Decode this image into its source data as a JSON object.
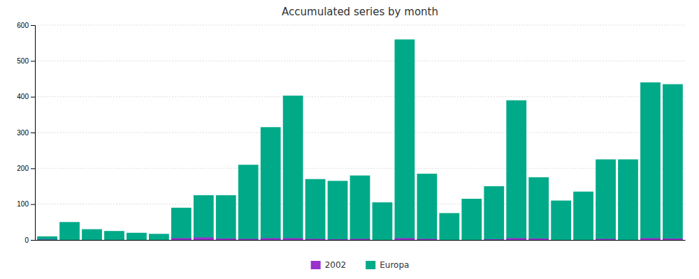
{
  "chart_data": {
    "type": "bar",
    "title": "Accumulated series by month",
    "categories": [
      null,
      null,
      null,
      null,
      null,
      null,
      null,
      null,
      null,
      null,
      null,
      null,
      null,
      null,
      null,
      null,
      null,
      null,
      null,
      null,
      null,
      null,
      null,
      null,
      null,
      null,
      null,
      null,
      null
    ],
    "series": [
      {
        "name": "2002",
        "color": "#9933cc",
        "values": [
          1,
          0,
          0,
          0,
          0,
          0,
          5,
          7,
          4,
          3,
          5,
          5,
          3,
          2,
          3,
          0,
          5,
          3,
          0,
          0,
          2,
          5,
          4,
          0,
          0,
          3,
          0,
          5,
          4
        ]
      },
      {
        "name": "Europa",
        "color": "#00aa88",
        "values": [
          10,
          50,
          30,
          25,
          20,
          17,
          90,
          125,
          125,
          210,
          315,
          403,
          170,
          165,
          180,
          105,
          560,
          185,
          75,
          115,
          150,
          390,
          175,
          110,
          135,
          225,
          225,
          440,
          435
        ]
      }
    ],
    "ylim": [
      0,
      600
    ],
    "yticks": [
      0,
      100,
      200,
      300,
      400,
      500,
      600
    ],
    "grid": true,
    "legend": "bottom",
    "tick_labels": "y"
  }
}
